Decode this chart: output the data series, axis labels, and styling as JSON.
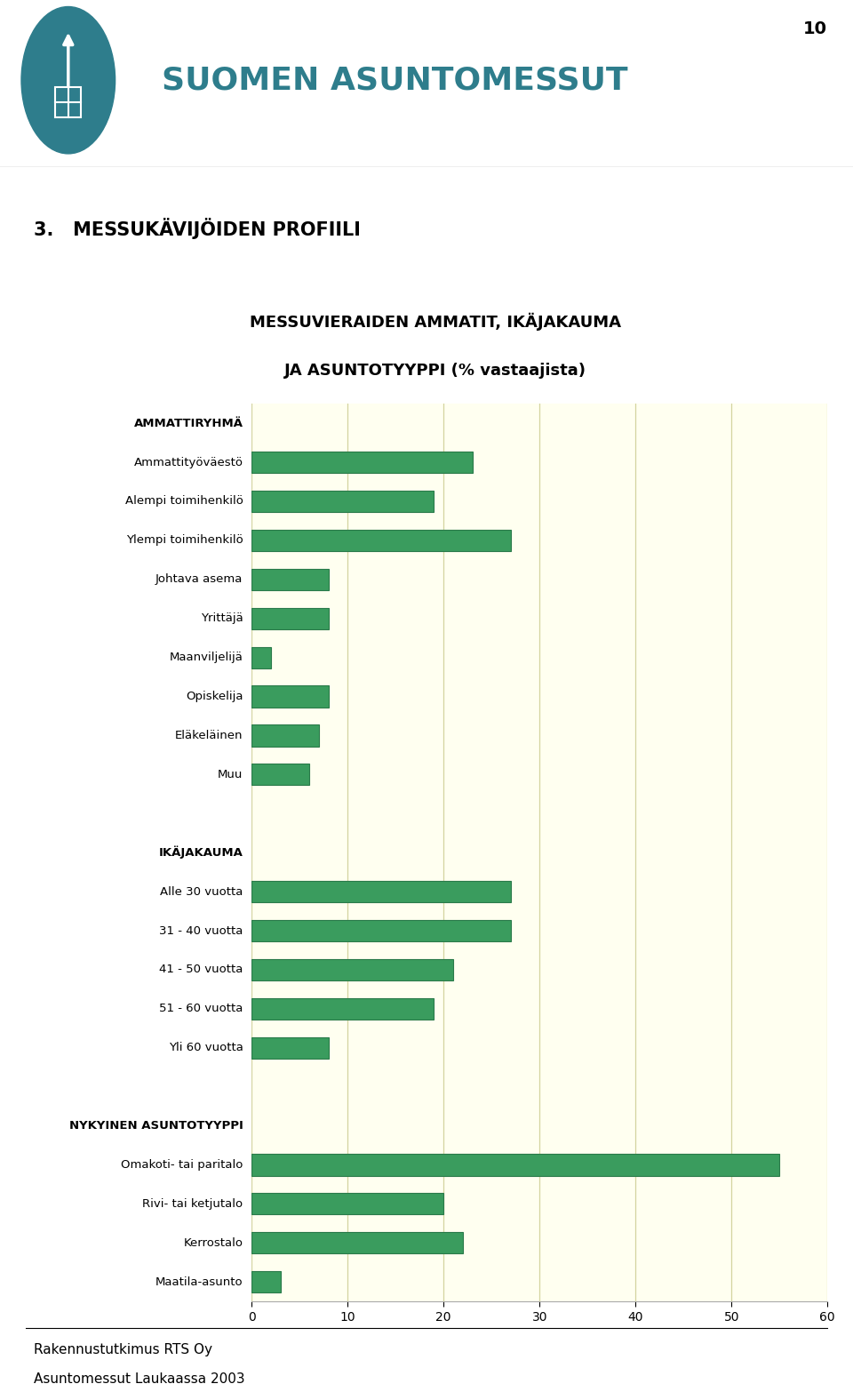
{
  "title_line1": "MESSUVIERAIDEN AMMATIT, IKÄJAKAUMA",
  "title_line2": "JA ASUNTOTYYPPI (% vastaajista)",
  "header": "3.   MESSUKÄVIJÖIDEN PROFIILI",
  "page_number": "10",
  "brand": "SUOMEN ASUNTOMESSUT",
  "footer_line1": "Rakennustutkimus RTS Oy",
  "footer_line2": "Asuntomessut Laukaassa 2003",
  "categories": [
    "AMMATTIRYHMÄ",
    "Ammattityöväestö",
    "Alempi toimihenkilö",
    "Ylempi toimihenkilö",
    "Johtava asema",
    "Yrittäjä",
    "Maanviljelijä",
    "Opiskelija",
    "Eläkeläinen",
    "Muu",
    "",
    "IKÄJAKAUMA",
    "Alle 30 vuotta",
    "31 - 40 vuotta",
    "41 - 50 vuotta",
    "51 - 60 vuotta",
    "Yli 60 vuotta",
    "",
    "NYKYINEN ASUNTOTYYPPI",
    "Omakoti- tai paritalo",
    "Rivi- tai ketjutalo",
    "Kerrostalo",
    "Maatila-asunto"
  ],
  "values": [
    0,
    23,
    19,
    27,
    8,
    8,
    2,
    8,
    7,
    6,
    0,
    0,
    27,
    27,
    21,
    19,
    8,
    0,
    0,
    55,
    20,
    22,
    3
  ],
  "bar_color": "#3a9c5e",
  "bar_edge_color": "#2a7a4a",
  "plot_bg": "#fffff0",
  "grid_color": "#d4d4a0",
  "xlim": [
    0,
    60
  ],
  "xticks": [
    0,
    10,
    20,
    30,
    40,
    50,
    60
  ],
  "header_sections": [
    "AMMATTIRYHMÄ",
    "IKÄJAKAUMA",
    "NYKYINEN ASUNTOTYYPPI"
  ],
  "teal_color": "#2e7d8c"
}
